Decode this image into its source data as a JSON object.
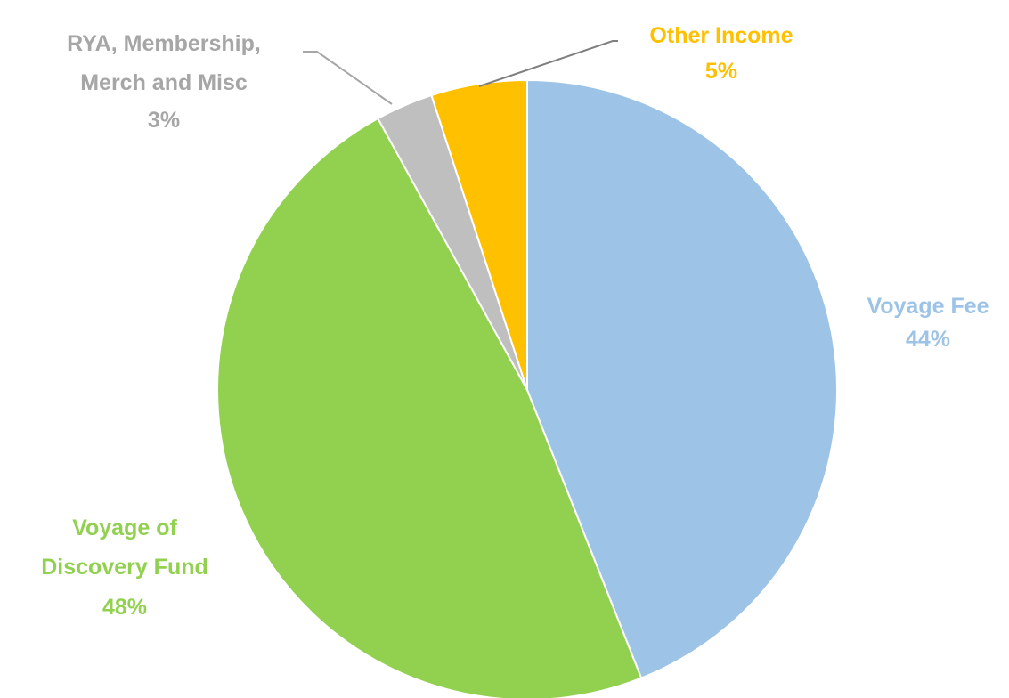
{
  "chart_data": {
    "type": "pie",
    "title": "",
    "slices": [
      {
        "name": "Voyage Fee",
        "value": 44,
        "percent_label": "44%",
        "color": "#9dc3e6"
      },
      {
        "name": "Voyage of Discovery Fund",
        "value": 48,
        "percent_label": "48%",
        "color": "#92d050"
      },
      {
        "name": "RYA, Membership, Merch and Misc",
        "value": 3,
        "percent_label": "3%",
        "color": "#bfbfbf"
      },
      {
        "name": "Other Income",
        "value": 5,
        "percent_label": "5%",
        "color": "#ffc000"
      }
    ],
    "start_angle": "12 o'clock",
    "direction": "clockwise",
    "legend": "none",
    "data_labels": "outside, category name and percentage"
  },
  "labels": {
    "voyage_fee": {
      "line1": "Voyage Fee",
      "pct": "44%"
    },
    "discovery": {
      "line1": "Voyage of",
      "line2": "Discovery Fund",
      "pct": "48%"
    },
    "rya": {
      "line1": "RYA, Membership,",
      "line2": "Merch and Misc",
      "pct": "3%"
    },
    "other": {
      "line1": "Other Income",
      "pct": "5%"
    }
  }
}
